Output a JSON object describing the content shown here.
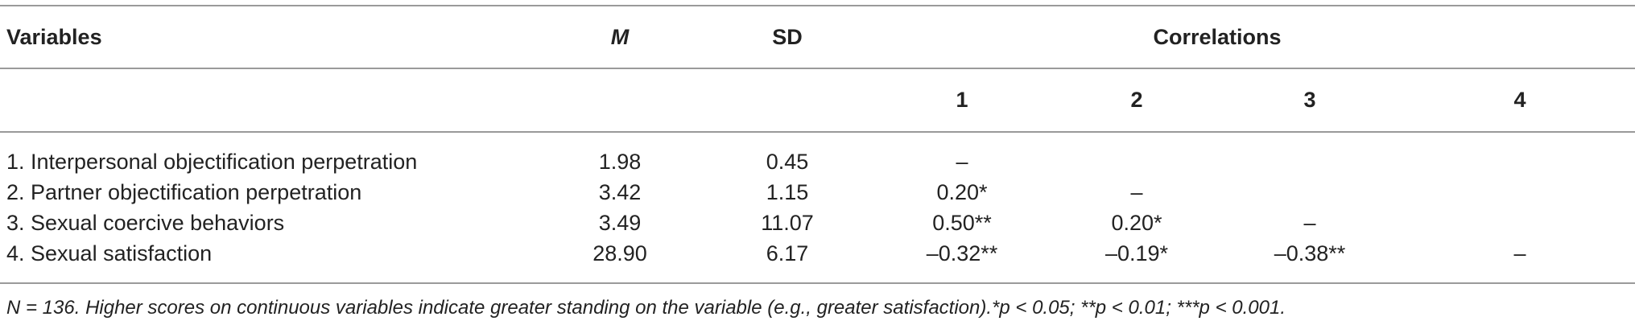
{
  "header": {
    "variables": "Variables",
    "mean": "M",
    "sd": "SD",
    "correlations": "Correlations"
  },
  "subheader": {
    "c1": "1",
    "c2": "2",
    "c3": "3",
    "c4": "4"
  },
  "rows": [
    {
      "label": "1. Interpersonal objectification perpetration",
      "m": "1.98",
      "sd": "0.45",
      "c1": "–",
      "c2": "",
      "c3": "",
      "c4": ""
    },
    {
      "label": "2. Partner objectification perpetration",
      "m": "3.42",
      "sd": "1.15",
      "c1": "0.20*",
      "c2": "–",
      "c3": "",
      "c4": ""
    },
    {
      "label": "3. Sexual coercive behaviors",
      "m": "3.49",
      "sd": "11.07",
      "c1": "0.50**",
      "c2": "0.20*",
      "c3": "–",
      "c4": ""
    },
    {
      "label": "4. Sexual satisfaction",
      "m": "28.90",
      "sd": "6.17",
      "c1": "–0.32**",
      "c2": "–0.19*",
      "c3": "–0.38**",
      "c4": "–"
    }
  ],
  "footnote": "N = 136. Higher scores on continuous variables indicate greater standing on the variable (e.g., greater satisfaction).*p < 0.05; **p < 0.01; ***p < 0.001."
}
